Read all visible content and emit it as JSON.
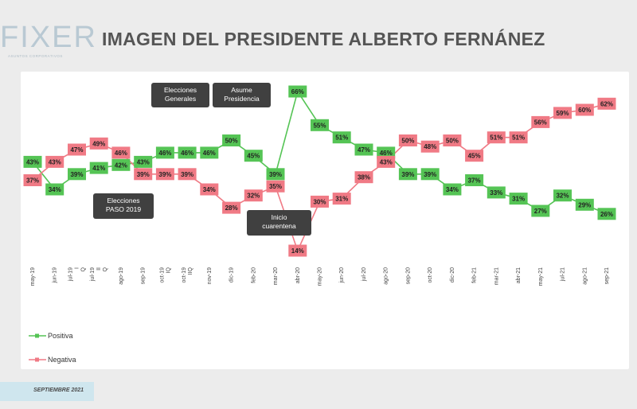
{
  "logo": {
    "text": "FIXER",
    "subtitle": "ASUNTOS CORPORATIVOS"
  },
  "header": {
    "title": "IMAGEN DEL PRESIDENTE ALBERTO FERNÁNEZ"
  },
  "footer": {
    "text": "SEPTIEMBRE 2021"
  },
  "chart_data": {
    "type": "line",
    "categories": [
      "may-19",
      "jun-19",
      "jul-19 I Q",
      "jul-19 II Q",
      "ago-19",
      "sep-19",
      "oct-19 IQ",
      "oct-19 IIQ",
      "nov-19",
      "dic-19",
      "feb-20",
      "mar-20",
      "abr-20",
      "may-20",
      "jun-20",
      "jul-20",
      "ago-20",
      "sep-20",
      "oct-20",
      "dic-20",
      "feb-21",
      "mar-21",
      "abr-21",
      "may-21",
      "jul-21",
      "ago-21",
      "sep-21"
    ],
    "series": [
      {
        "name": "Positiva",
        "color": "#55c455",
        "values": [
          43,
          34,
          39,
          41,
          42,
          43,
          46,
          46,
          46,
          50,
          45,
          39,
          66,
          55,
          51,
          47,
          46,
          39,
          39,
          34,
          37,
          33,
          31,
          27,
          32,
          29,
          26
        ]
      },
      {
        "name": "Negativa",
        "color": "#f07a85",
        "values": [
          37,
          43,
          47,
          49,
          46,
          39,
          39,
          39,
          34,
          28,
          32,
          35,
          14,
          30,
          31,
          38,
          43,
          50,
          48,
          50,
          45,
          51,
          51,
          56,
          59,
          60,
          62
        ]
      }
    ],
    "value_suffix": "%",
    "legend_position": "bottom-left",
    "grid": false,
    "annotations": [
      {
        "text": [
          "Elecciones",
          "PASO 2019"
        ]
      },
      {
        "text": [
          "Elecciones",
          "Generales"
        ]
      },
      {
        "text": [
          "Asume",
          "Presidencia"
        ]
      },
      {
        "text": [
          "Inicio",
          "cuarentena"
        ]
      }
    ]
  }
}
